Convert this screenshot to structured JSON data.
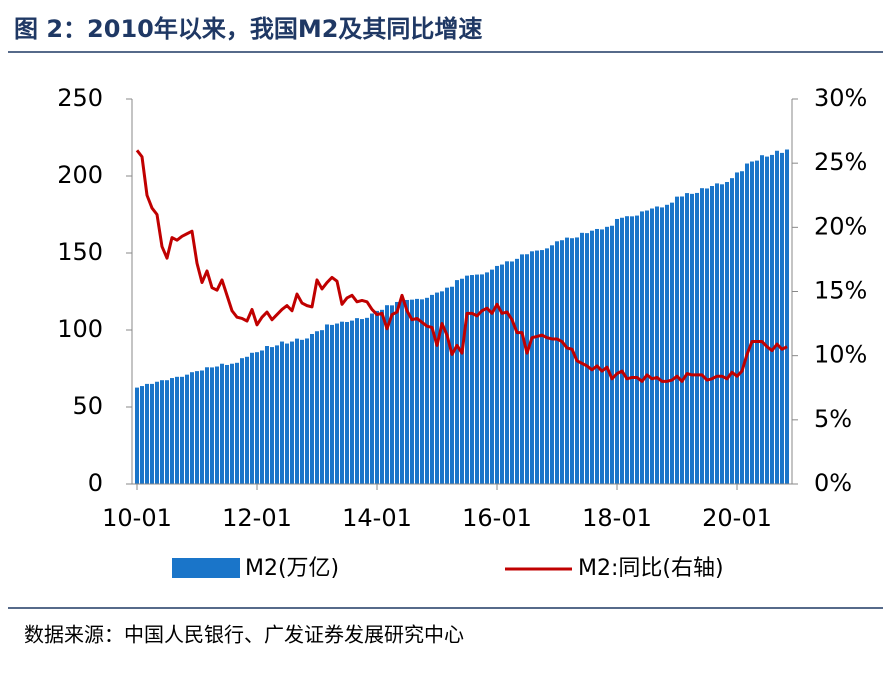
{
  "chart_data": {
    "type": "bar-line",
    "title": "图 2：2010年以来，我国M2及其同比增速",
    "categories": [
      "10-01",
      null,
      null,
      null,
      null,
      null,
      null,
      null,
      null,
      null,
      null,
      null,
      null,
      null,
      null,
      null,
      null,
      null,
      null,
      null,
      null,
      null,
      null,
      null,
      "12-01",
      null,
      null,
      null,
      null,
      null,
      null,
      null,
      null,
      null,
      null,
      null,
      null,
      null,
      null,
      null,
      null,
      null,
      null,
      null,
      null,
      null,
      null,
      null,
      "14-01",
      null,
      null,
      null,
      null,
      null,
      null,
      null,
      null,
      null,
      null,
      null,
      null,
      null,
      null,
      null,
      null,
      null,
      null,
      null,
      null,
      null,
      null,
      null,
      "16-01",
      null,
      null,
      null,
      null,
      null,
      null,
      null,
      null,
      null,
      null,
      null,
      null,
      null,
      null,
      null,
      null,
      null,
      null,
      null,
      null,
      null,
      null,
      null,
      "18-01",
      null,
      null,
      null,
      null,
      null,
      null,
      null,
      null,
      null,
      null,
      null,
      null,
      null,
      null,
      null,
      null,
      null,
      null,
      null,
      null,
      null,
      null,
      null,
      "20-01",
      null,
      null,
      null,
      null,
      null,
      null,
      null,
      null,
      null,
      null
    ],
    "series": [
      {
        "name": "M2(万亿)",
        "type": "bar",
        "color": "#1a75c9",
        "values": [
          62.6,
          63.6,
          65.0,
          65.0,
          66.4,
          67.4,
          67.4,
          68.8,
          69.6,
          69.6,
          71.0,
          72.6,
          73.3,
          73.7,
          75.8,
          75.7,
          76.3,
          78.1,
          77.3,
          78.1,
          78.7,
          81.7,
          82.6,
          85.2,
          85.6,
          86.7,
          89.6,
          88.9,
          90.0,
          92.5,
          91.2,
          92.5,
          94.4,
          93.6,
          94.5,
          97.4,
          99.2,
          99.9,
          103.6,
          103.3,
          104.2,
          105.4,
          105.2,
          106.1,
          107.7,
          107.1,
          107.9,
          110.7,
          112.4,
          113.1,
          116.1,
          116.0,
          118.2,
          121.0,
          119.5,
          119.7,
          120.2,
          119.9,
          120.9,
          122.8,
          124.3,
          125.1,
          127.5,
          128.1,
          132.4,
          133.3,
          135.3,
          135.7,
          136.0,
          136.1,
          137.4,
          139.2,
          141.6,
          142.5,
          144.6,
          144.5,
          146.2,
          149.1,
          149.2,
          151.1,
          151.6,
          151.9,
          153.0,
          155.0,
          157.6,
          158.3,
          160.0,
          159.6,
          160.1,
          163.1,
          162.9,
          164.5,
          165.6,
          165.3,
          167.0,
          167.7,
          172.1,
          172.9,
          173.9,
          173.8,
          174.3,
          177.0,
          177.6,
          178.9,
          180.2,
          179.6,
          181.3,
          182.7,
          186.6,
          186.7,
          188.9,
          188.4,
          189.0,
          192.1,
          191.9,
          193.5,
          195.2,
          194.6,
          196.1,
          198.6,
          202.3,
          203.1,
          208.1,
          209.4,
          210.0,
          213.5,
          212.6,
          213.7,
          216.4,
          215.0,
          217.2
        ]
      },
      {
        "name": "M2:同比(右轴)",
        "type": "line",
        "axis": "y2",
        "color": "#c00000",
        "values": [
          26.0,
          25.5,
          22.5,
          21.5,
          21.0,
          18.5,
          17.6,
          19.2,
          19.0,
          19.3,
          19.5,
          19.7,
          17.2,
          15.7,
          16.6,
          15.3,
          15.1,
          15.9,
          14.7,
          13.5,
          13.0,
          12.9,
          12.7,
          13.6,
          12.4,
          13.0,
          13.4,
          12.8,
          13.2,
          13.6,
          13.9,
          13.5,
          14.8,
          14.1,
          13.9,
          13.8,
          15.9,
          15.2,
          15.7,
          16.1,
          15.8,
          14.0,
          14.5,
          14.7,
          14.2,
          14.3,
          14.2,
          13.6,
          13.2,
          13.3,
          12.1,
          13.2,
          13.4,
          14.7,
          13.5,
          12.8,
          12.9,
          12.6,
          12.3,
          12.2,
          10.8,
          12.5,
          11.6,
          10.1,
          10.8,
          10.2,
          13.3,
          13.3,
          13.1,
          13.5,
          13.7,
          13.3,
          14.0,
          13.3,
          13.4,
          12.8,
          11.8,
          11.8,
          10.2,
          11.4,
          11.5,
          11.6,
          11.4,
          11.3,
          11.3,
          11.1,
          10.6,
          10.5,
          9.6,
          9.4,
          9.2,
          8.9,
          9.2,
          8.8,
          9.1,
          8.2,
          8.6,
          8.8,
          8.2,
          8.3,
          8.3,
          8.0,
          8.5,
          8.2,
          8.3,
          8.0,
          8.0,
          8.1,
          8.4,
          8.0,
          8.6,
          8.5,
          8.5,
          8.5,
          8.1,
          8.2,
          8.4,
          8.4,
          8.2,
          8.7,
          8.4,
          8.8,
          10.1,
          11.1,
          11.1,
          11.1,
          10.7,
          10.4,
          10.9,
          10.5,
          10.7
        ]
      }
    ],
    "ylim": [
      0,
      250
    ],
    "yticks": [
      0,
      50,
      100,
      150,
      200,
      250
    ],
    "y2lim": [
      0,
      30
    ],
    "y2ticks": [
      {
        "value": 0,
        "label": "0%"
      },
      {
        "value": 5,
        "label": "5%"
      },
      {
        "value": 10,
        "label": "10%"
      },
      {
        "value": 15,
        "label": "15%"
      },
      {
        "value": 20,
        "label": "20%"
      },
      {
        "value": 25,
        "label": "25%"
      },
      {
        "value": 30,
        "label": "30%"
      }
    ]
  },
  "source": "数据来源：中国人民银行、广发证券发展研究中心"
}
